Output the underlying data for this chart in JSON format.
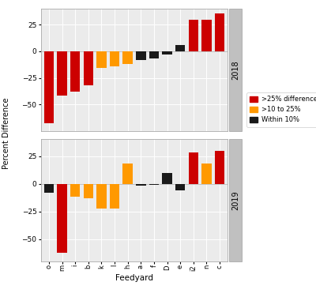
{
  "categories": [
    "o",
    "m",
    "i",
    "b",
    "k",
    "l",
    "h",
    "a",
    "f",
    "D",
    "e",
    "i2",
    "n",
    "c"
  ],
  "year2018": [
    -68,
    -42,
    -38,
    -32,
    -16,
    -14,
    -12,
    -8,
    -7,
    -3,
    6,
    30,
    30,
    36
  ],
  "year2019": [
    -8,
    -62,
    -12,
    -13,
    -22,
    -22,
    18,
    -2,
    -1,
    10,
    -6,
    28,
    18,
    30
  ],
  "colors2018": [
    "red",
    "red",
    "red",
    "red",
    "orange",
    "orange",
    "orange",
    "black",
    "black",
    "black",
    "black",
    "red",
    "red",
    "red"
  ],
  "colors2019": [
    "black",
    "red",
    "orange",
    "orange",
    "orange",
    "orange",
    "orange",
    "black",
    "black",
    "black",
    "black",
    "red",
    "orange",
    "red"
  ],
  "title2018": "2018",
  "title2019": "2019",
  "ylabel": "Percent Difference",
  "xlabel": "Feedyard",
  "ylim2018": [
    -75,
    40
  ],
  "ylim2019": [
    -70,
    40
  ],
  "yticks2018": [
    -50,
    -25,
    0,
    25
  ],
  "yticks2019": [
    -50,
    -25,
    0,
    25
  ],
  "color_red": "#CC0000",
  "color_orange": "#FF9900",
  "color_black": "#1a1a1a",
  "bg_color": "#EBEBEB",
  "legend_labels": [
    ">25% difference",
    ">10 to 25%",
    "Within 10%"
  ],
  "legend_colors": [
    "#CC0000",
    "#FF9900",
    "#1a1a1a"
  ],
  "strip_color": "#C0C0C0",
  "grid_color": "#FFFFFF",
  "spine_color": "#AAAAAA"
}
